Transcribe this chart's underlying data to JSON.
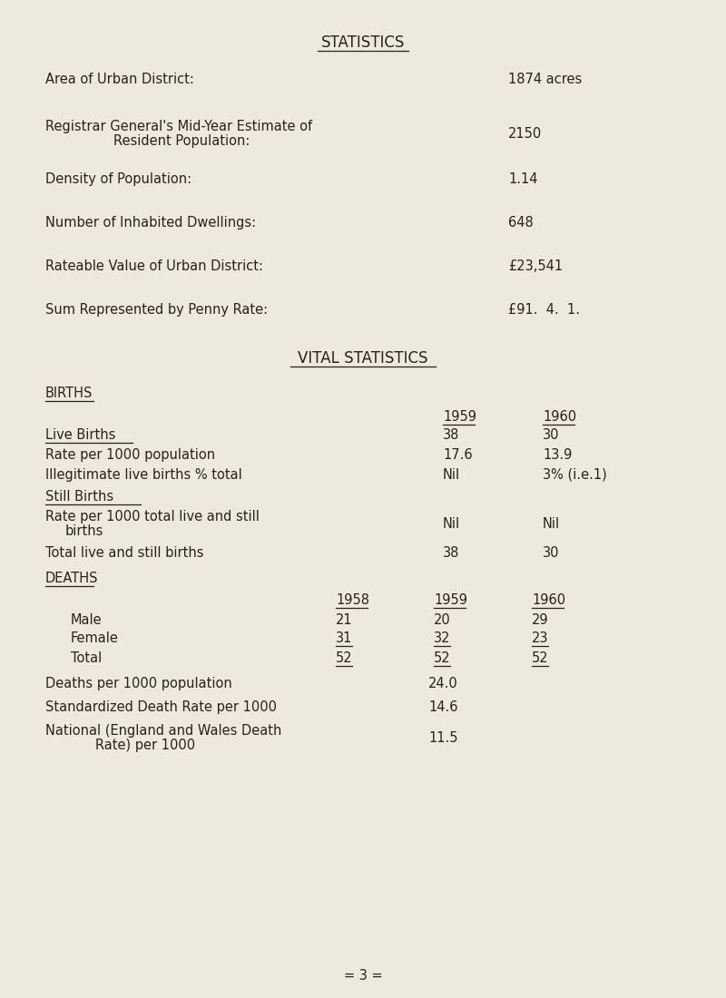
{
  "bg_color": "#ede9dc",
  "text_color": "#2a2218",
  "title": "STATISTICS",
  "vital_title": "VITAL STATISTICS",
  "font_family": "Courier New",
  "title_fontsize": 12,
  "body_fontsize": 10.5,
  "footer": "= 3 ="
}
